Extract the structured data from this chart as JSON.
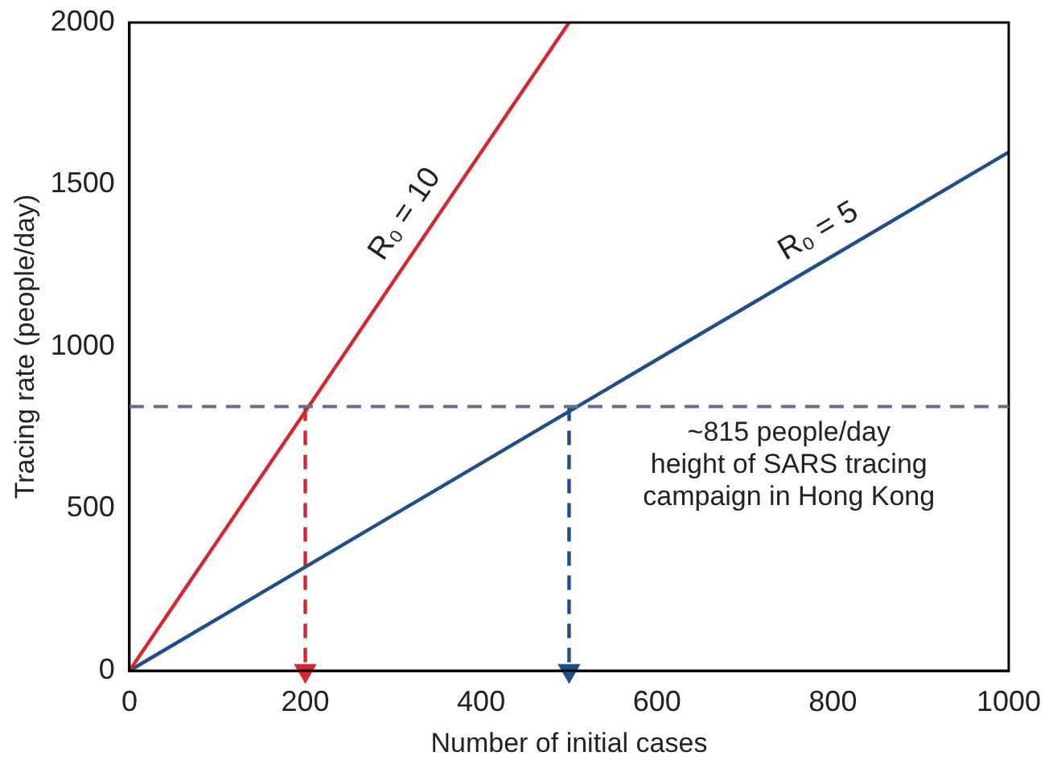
{
  "chart_data": {
    "type": "line",
    "xlabel": "Number of initial cases",
    "ylabel": "Tracing rate (people/day)",
    "xlim": [
      0,
      1000
    ],
    "xticks": [
      0,
      200,
      400,
      600,
      800,
      1000
    ],
    "ylim": [
      0,
      2000
    ],
    "yticks": [
      0,
      500,
      1000,
      1500,
      2000
    ],
    "grid": false,
    "legend": false,
    "series": [
      {
        "name": "R₀ = 10",
        "color": "#d7262e",
        "x": [
          0,
          500
        ],
        "values": [
          0,
          2000
        ]
      },
      {
        "name": "R₀ = 5",
        "color": "#1f4e8c",
        "x": [
          0,
          1000
        ],
        "values": [
          0,
          1600
        ]
      },
      {
        "color": "#d7262e",
        "x": [
          200,
          200
        ],
        "values": [
          815,
          0
        ],
        "line_style": "dashed"
      },
      {
        "color": "#1f4e8c",
        "x": [
          500,
          500
        ],
        "values": [
          815,
          0
        ],
        "line_style": "dashed"
      }
    ],
    "ref_lines": [
      {
        "axis": "y",
        "value": 815,
        "color": "#6b6b8f",
        "line_style": "dashed"
      }
    ],
    "annotations": [
      {
        "text": "~815 people/day\nheight of SARS tracing\ncampaign in Hong Kong",
        "x": 750,
        "y": 815
      }
    ]
  }
}
